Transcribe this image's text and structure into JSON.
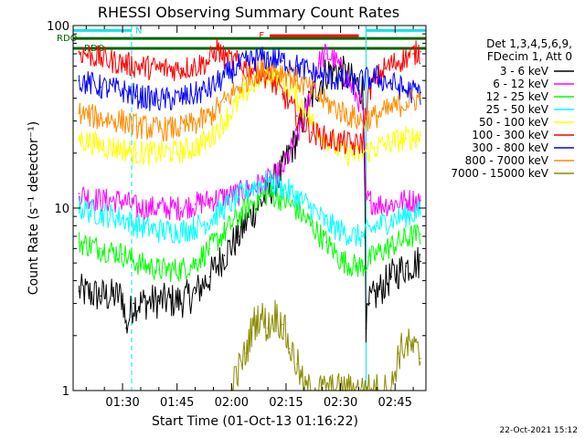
{
  "chart_data": {
    "type": "line",
    "title": "RHESSI Observing Summary Count Rates",
    "xlabel": "Start Time (01-Oct-13 01:16:22)",
    "ylabel": "Count Rate (s⁻¹ detector⁻¹)",
    "yscale": "log",
    "ylim": [
      1,
      100
    ],
    "xlim": [
      16.4,
      113.5
    ],
    "x_units": "minutes after 01:00 UT",
    "grid": false,
    "legend_placement": "right",
    "legend_header": [
      "Det 1,3,4,5,6,9,",
      "FDecim 1, Att 0"
    ],
    "timestamp": "22-Oct-2021 15:12",
    "x_ticks": [
      {
        "x": 30,
        "label": "01:30"
      },
      {
        "x": 45,
        "label": "01:45"
      },
      {
        "x": 60,
        "label": "02:00"
      },
      {
        "x": 75,
        "label": "02:15"
      },
      {
        "x": 90,
        "label": "02:30"
      },
      {
        "x": 105,
        "label": "02:45"
      }
    ],
    "y_ticks": [
      {
        "y": 1,
        "label": "1"
      },
      {
        "y": 10,
        "label": "10"
      },
      {
        "y": 100,
        "label": "100"
      }
    ],
    "flags": [
      {
        "name": "N",
        "color": "#00e5ee",
        "level": 94,
        "segments": [
          [
            16.4,
            32.5
          ],
          [
            97.0,
            113.5
          ]
        ]
      },
      {
        "name": "F",
        "color": "#ff0000",
        "level": 88,
        "segments": [
          [
            70.5,
            95.0
          ]
        ]
      },
      {
        "name": "RDO",
        "color": "#006400",
        "level": 85,
        "segments": [
          [
            16.4,
            113.5
          ]
        ]
      },
      {
        "name": "RDO",
        "color": "#006400",
        "level": 75,
        "segments": [
          [
            16.4,
            113.5
          ]
        ]
      }
    ],
    "vlines": [
      {
        "x": 16.4,
        "style": "solid",
        "color": "#00e5ee"
      },
      {
        "x": 32.5,
        "style": "dashed",
        "color": "#00e5ee"
      },
      {
        "x": 97.0,
        "style": "solid",
        "color": "#00e5ee"
      },
      {
        "x": 113.5,
        "style": "dashed",
        "color": "#00e5ee"
      }
    ],
    "series": [
      {
        "name": "3 - 6 keV",
        "color": "#000000",
        "x": [
          18,
          24,
          30,
          31,
          33,
          40,
          46,
          50,
          54,
          58,
          62,
          66,
          70,
          74,
          78,
          82,
          86,
          88,
          90,
          94,
          96,
          97,
          98,
          100,
          104,
          108,
          112
        ],
        "y": [
          3.5,
          3.3,
          3.3,
          2.2,
          3.0,
          3.1,
          3.1,
          3.4,
          4.2,
          5.5,
          7.0,
          9.5,
          12,
          16,
          24,
          40,
          55,
          58,
          56,
          48,
          45,
          2.2,
          3.0,
          3.4,
          4.2,
          4.8,
          5.1
        ]
      },
      {
        "name": "6 - 12 keV",
        "color": "#ff00ff",
        "x": [
          18,
          24,
          30,
          34,
          40,
          46,
          50,
          54,
          58,
          62,
          66,
          70,
          74,
          77,
          80,
          82,
          84,
          86,
          88,
          90,
          92,
          94,
          96,
          97,
          98,
          100,
          104,
          108,
          112
        ],
        "y": [
          12,
          11,
          11,
          10,
          10,
          10,
          10.5,
          11,
          11.5,
          12,
          13,
          14,
          16,
          22,
          30,
          45,
          62,
          70,
          66,
          58,
          50,
          42,
          36,
          11,
          11,
          10.5,
          10.5,
          11,
          11
        ]
      },
      {
        "name": "12 - 25 keV",
        "color": "#00ff00",
        "x": [
          18,
          24,
          30,
          34,
          40,
          46,
          50,
          54,
          58,
          62,
          66,
          70,
          74,
          78,
          82,
          86,
          90,
          94,
          96,
          100,
          104,
          108,
          112
        ],
        "y": [
          6.5,
          6.0,
          5.6,
          5.0,
          4.6,
          4.6,
          5.0,
          6.0,
          7.3,
          9.0,
          10.8,
          12,
          11.2,
          9.8,
          8.0,
          6.5,
          5.2,
          4.8,
          4.8,
          5.6,
          6.2,
          6.8,
          7.2
        ]
      },
      {
        "name": "25 - 50 keV",
        "color": "#00ffff",
        "x": [
          18,
          24,
          30,
          34,
          40,
          46,
          50,
          54,
          58,
          62,
          66,
          70,
          74,
          78,
          82,
          86,
          90,
          94,
          96,
          100,
          104,
          108,
          112
        ],
        "y": [
          10,
          9.3,
          8.8,
          8.0,
          7.5,
          7.5,
          7.8,
          8.6,
          10,
          11.5,
          13.2,
          14,
          13,
          11.5,
          10,
          8.3,
          7.5,
          7.0,
          7.0,
          8.0,
          8.6,
          9.1,
          9.5
        ]
      },
      {
        "name": "50 - 100 keV",
        "color": "#ffff00",
        "x": [
          18,
          24,
          30,
          34,
          40,
          46,
          50,
          54,
          58,
          62,
          66,
          70,
          74,
          78,
          82,
          86,
          90,
          94,
          96,
          100,
          104,
          108,
          112
        ],
        "y": [
          24,
          22,
          21,
          20,
          20,
          20.5,
          21.5,
          24,
          30,
          38,
          48,
          55,
          50,
          40,
          30,
          24,
          20.5,
          19.5,
          20,
          21.5,
          23,
          24,
          25
        ]
      },
      {
        "name": "100 - 300 keV",
        "color": "#ff0000",
        "x": [
          18,
          24,
          30,
          34,
          40,
          46,
          50,
          54,
          56,
          58,
          62,
          66,
          70,
          74,
          78,
          82,
          86,
          90,
          94,
          96,
          98,
          102,
          106,
          110,
          112
        ],
        "y": [
          72,
          66,
          62,
          60,
          58,
          58,
          60,
          64,
          75,
          66,
          62,
          58,
          52,
          42,
          32,
          26,
          24,
          23,
          22,
          23,
          45,
          58,
          64,
          70,
          72
        ]
      },
      {
        "name": "300 - 800 keV",
        "color": "#0000ff",
        "x": [
          18,
          24,
          30,
          34,
          40,
          46,
          50,
          54,
          58,
          62,
          66,
          70,
          74,
          78,
          82,
          86,
          90,
          94,
          96,
          100,
          104,
          108,
          112
        ],
        "y": [
          50,
          46,
          44,
          41,
          39,
          40,
          42,
          45,
          52,
          60,
          65,
          66,
          64,
          60,
          55,
          52,
          50,
          48,
          50,
          52,
          48,
          44,
          43
        ]
      },
      {
        "name": "800 - 7000 keV",
        "color": "#ff8c00",
        "x": [
          18,
          24,
          30,
          34,
          40,
          46,
          50,
          54,
          58,
          62,
          66,
          70,
          74,
          78,
          82,
          86,
          90,
          94,
          96,
          100,
          104,
          108,
          112
        ],
        "y": [
          33,
          31,
          30,
          28,
          27,
          27.5,
          29,
          32,
          38,
          46,
          54,
          58,
          56,
          50,
          44,
          38,
          34,
          31,
          30,
          32,
          35,
          38,
          40
        ]
      },
      {
        "name": "7000 - 15000 keV",
        "color": "#8b8b00",
        "x": [
          60,
          64,
          66,
          68,
          70,
          72,
          74,
          76,
          78,
          80,
          84,
          90,
          96,
          100,
          104,
          106,
          108,
          110,
          112
        ],
        "y": [
          1.0,
          1.6,
          2.3,
          2.6,
          2.2,
          2.6,
          2.3,
          1.7,
          1.4,
          1.0,
          1.0,
          1.0,
          1.0,
          1.0,
          1.0,
          1.6,
          1.8,
          1.7,
          1.5
        ]
      }
    ]
  }
}
